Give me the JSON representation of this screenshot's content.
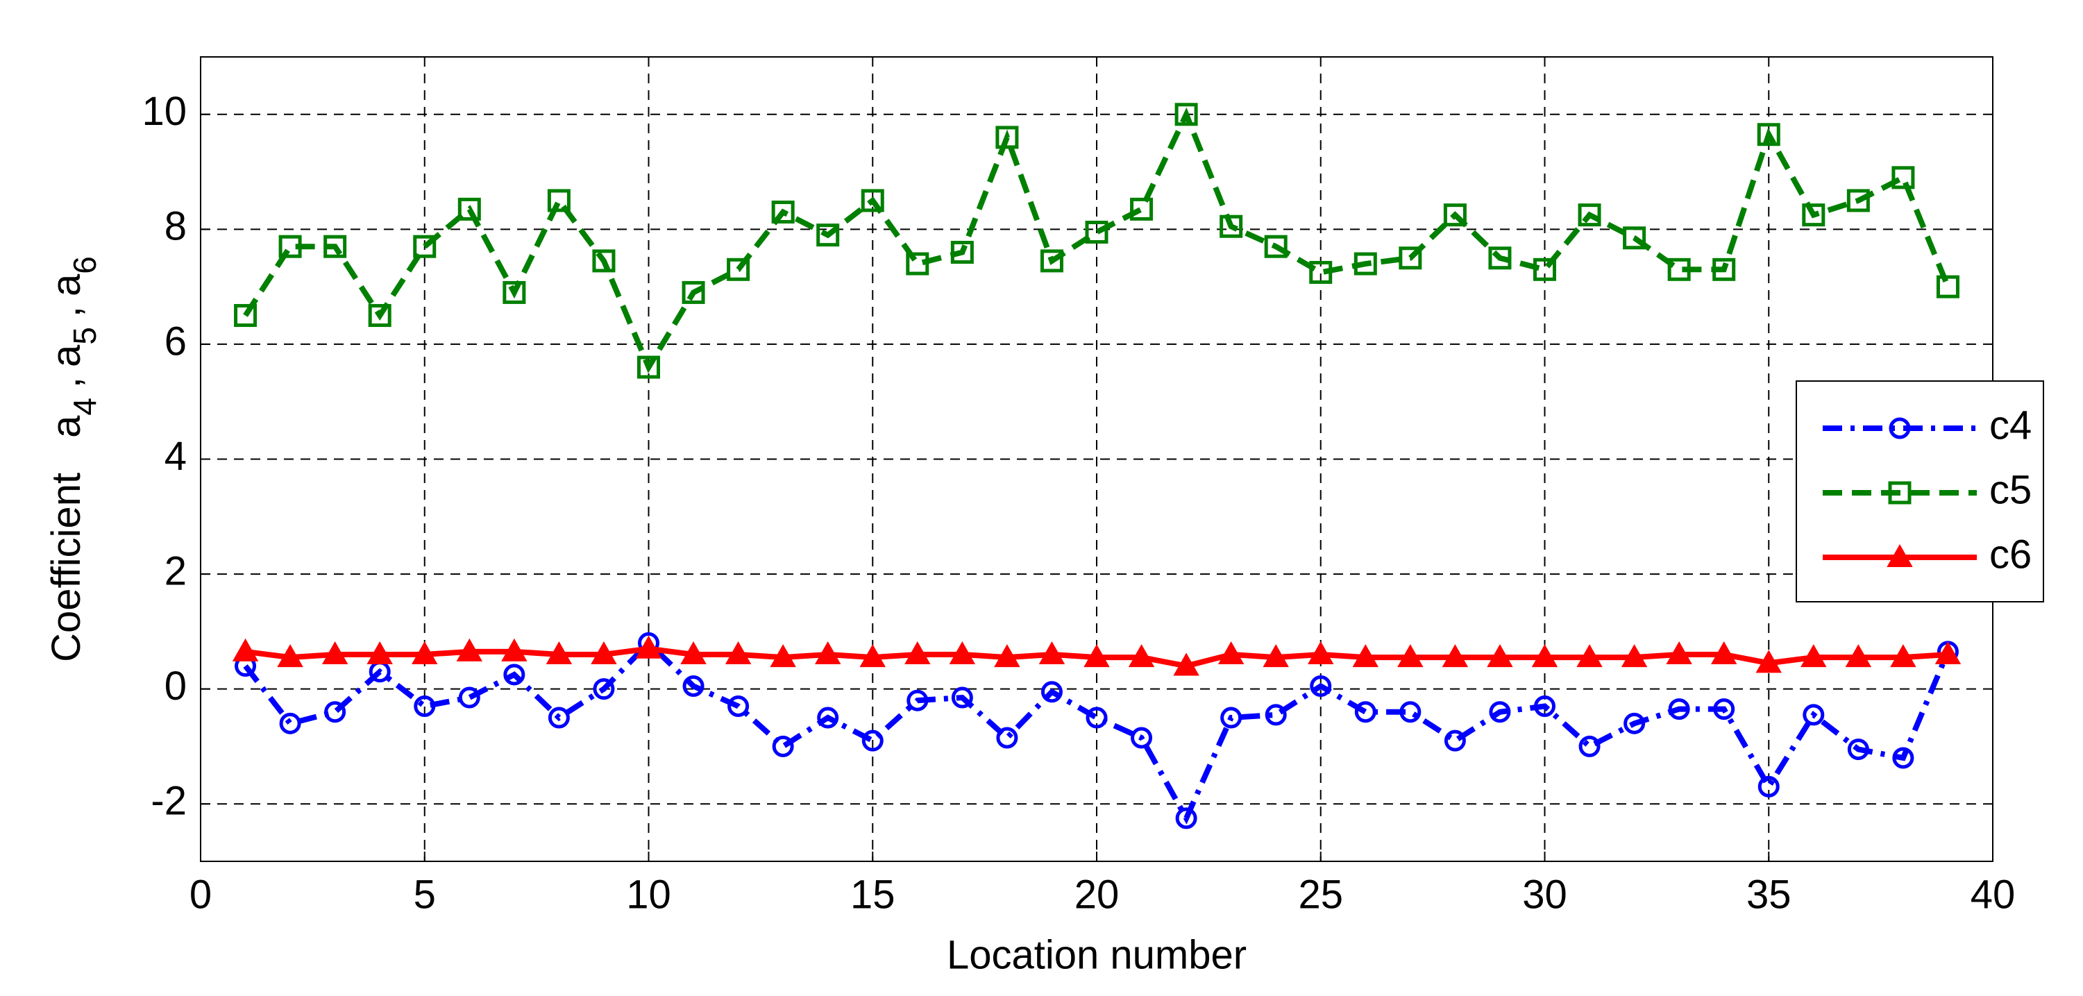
{
  "chart_data": {
    "type": "line",
    "xlabel": "Location number",
    "ylabel": {
      "text": "Coefficient",
      "terms": [
        {
          "base": "a",
          "sub": "4"
        },
        {
          "base": "a",
          "sub": "5"
        },
        {
          "base": "a",
          "sub": "6"
        }
      ],
      "separator": ","
    },
    "x": [
      1,
      2,
      3,
      4,
      5,
      6,
      7,
      8,
      9,
      10,
      11,
      12,
      13,
      14,
      15,
      16,
      17,
      18,
      19,
      20,
      21,
      22,
      23,
      24,
      25,
      26,
      27,
      28,
      29,
      30,
      31,
      32,
      33,
      34,
      35,
      36,
      37,
      38,
      39
    ],
    "series": [
      {
        "name": "c4",
        "color": "#0000ff",
        "dash": "dashdot",
        "marker": "circle",
        "values": [
          0.4,
          -0.6,
          -0.4,
          0.3,
          -0.3,
          -0.15,
          0.25,
          -0.5,
          0.0,
          0.8,
          0.05,
          -0.3,
          -1.0,
          -0.5,
          -0.9,
          -0.2,
          -0.15,
          -0.85,
          -0.05,
          -0.5,
          -0.85,
          -2.25,
          -0.5,
          -0.45,
          0.05,
          -0.4,
          -0.4,
          -0.9,
          -0.4,
          -0.3,
          -1.0,
          -0.6,
          -0.35,
          -0.35,
          -1.7,
          -0.45,
          -1.05,
          -1.2,
          0.65
        ]
      },
      {
        "name": "c5",
        "color": "#008000",
        "dash": "dashed",
        "marker": "square",
        "values": [
          6.5,
          7.7,
          7.7,
          6.5,
          7.7,
          8.35,
          6.9,
          8.5,
          7.45,
          5.6,
          6.9,
          7.3,
          8.3,
          7.9,
          8.5,
          7.4,
          7.6,
          9.6,
          7.45,
          7.95,
          8.35,
          10.0,
          8.05,
          7.7,
          7.25,
          7.4,
          7.5,
          8.25,
          7.5,
          7.3,
          8.25,
          7.85,
          7.3,
          7.3,
          9.65,
          8.25,
          8.5,
          8.9,
          7.0
        ]
      },
      {
        "name": "c6",
        "color": "#ff0000",
        "dash": "solid",
        "marker": "triangle",
        "values": [
          0.65,
          0.55,
          0.6,
          0.6,
          0.6,
          0.65,
          0.65,
          0.6,
          0.6,
          0.7,
          0.6,
          0.6,
          0.55,
          0.6,
          0.55,
          0.6,
          0.6,
          0.55,
          0.6,
          0.55,
          0.55,
          0.4,
          0.6,
          0.55,
          0.6,
          0.55,
          0.55,
          0.55,
          0.55,
          0.55,
          0.55,
          0.55,
          0.6,
          0.6,
          0.45,
          0.55,
          0.55,
          0.55,
          0.6
        ]
      }
    ],
    "xlim": [
      0,
      40
    ],
    "xticks": [
      0,
      5,
      10,
      15,
      20,
      25,
      30,
      35,
      40
    ],
    "ylim": [
      -3,
      11
    ],
    "yticks": [
      -2,
      0,
      2,
      4,
      6,
      8,
      10
    ],
    "grid": true,
    "legend": "right"
  }
}
